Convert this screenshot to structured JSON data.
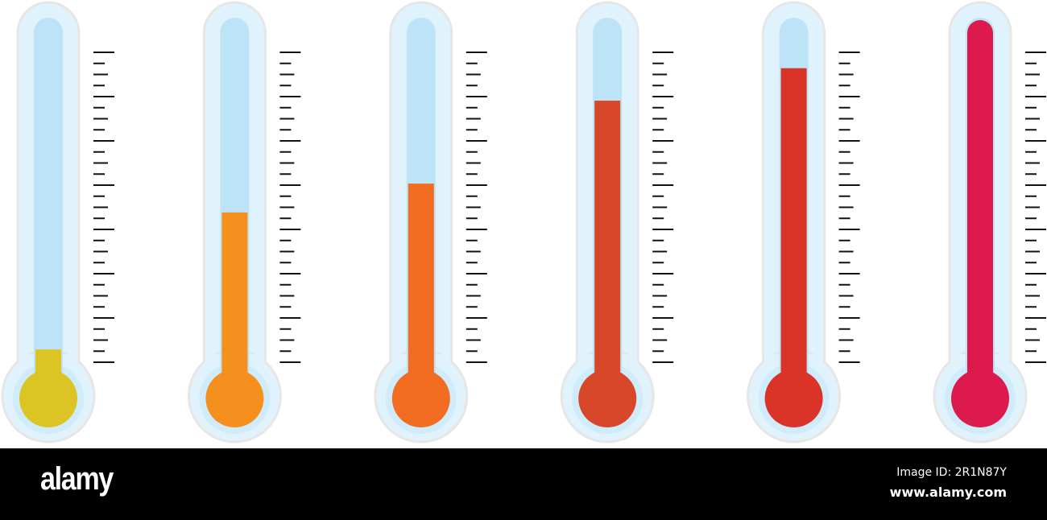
{
  "thermometers": [
    {
      "level": 0.08,
      "color": "#dcc424"
    },
    {
      "level": 0.46,
      "color": "#f5901e"
    },
    {
      "level": 0.54,
      "color": "#f26d22"
    },
    {
      "level": 0.77,
      "color": "#d9472a"
    },
    {
      "level": 0.86,
      "color": "#d93427"
    },
    {
      "level": 1.0,
      "color": "#dc1a4b"
    }
  ],
  "colors": {
    "tube": "#bde3f7",
    "glow": "#e0f3fc",
    "outline": "#e6e6e6",
    "tick": "#111111"
  },
  "footer": {
    "logo": "alamy",
    "image_id": "Image ID: 2R1N87Y",
    "site": "www.alamy.com"
  }
}
